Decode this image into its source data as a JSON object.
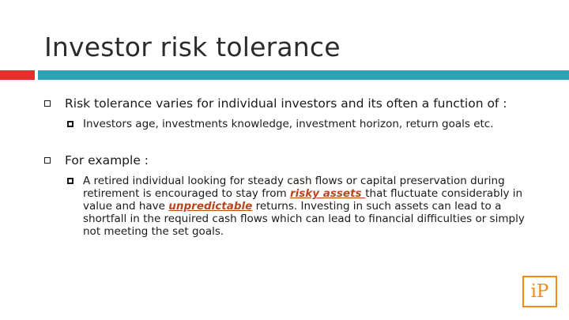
{
  "slide": {
    "title": "Investor risk tolerance",
    "bullets": [
      {
        "text": "Risk tolerance varies for individual investors and its often a function of :",
        "sub": [
          {
            "text": "Investors age, investments knowledge, investment horizon, return goals etc."
          }
        ]
      },
      {
        "text": "For example :",
        "sub": [
          {
            "part1": "A retired individual looking for steady cash flows or capital preservation during retirement is encouraged to stay from ",
            "link1": "risky assets ",
            "part2": "that fluctuate considerably in value and have ",
            "link2": "unpredictable",
            "part3": " returns. Investing in such assets can lead to a shortfall in the required cash flows which can lead to financial difficulties or simply not meeting the set goals."
          }
        ]
      }
    ]
  },
  "logo": {
    "text": "iP"
  },
  "colors": {
    "accent_red": "#e0312b",
    "accent_teal": "#2ea3b8",
    "link": "#b8461f",
    "logo": "#f28a1c"
  }
}
